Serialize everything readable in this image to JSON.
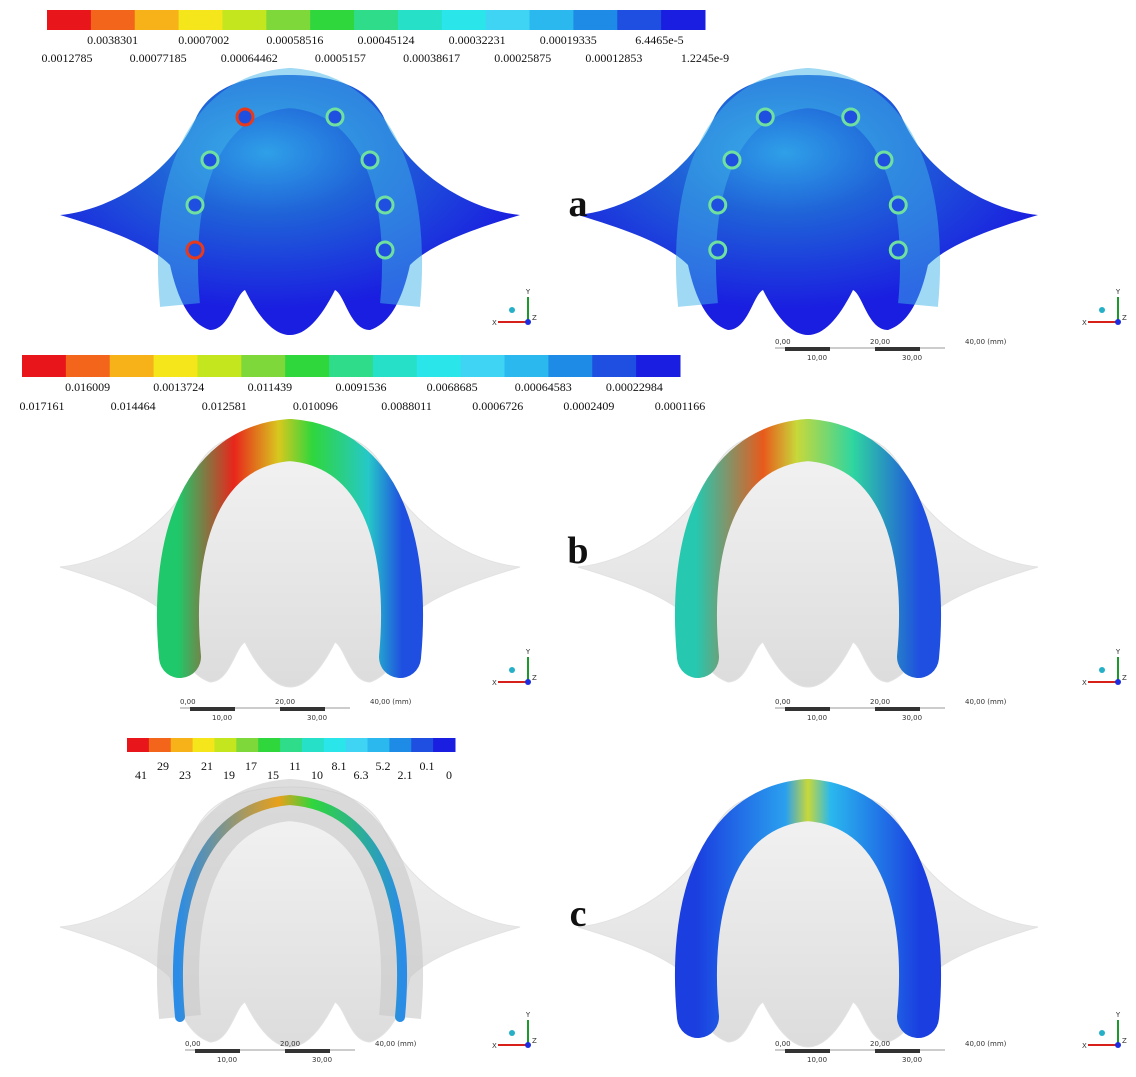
{
  "legends": [
    {
      "colors": [
        "#e8161b",
        "#f2651a",
        "#f7b21a",
        "#f4e61a",
        "#c3e61e",
        "#7ed83a",
        "#2fd63c",
        "#2fdc8a",
        "#26e0c8",
        "#2ae6ea",
        "#3fd4f4",
        "#2ab8ee",
        "#1e8ce6",
        "#1f4fe0",
        "#1a1ee0"
      ],
      "labels": [
        "0.0012785",
        "0.0038301",
        "0.00077185",
        "0.0007002",
        "0.00064462",
        "0.00058516",
        "0.0005157",
        "0.00045124",
        "0.00038617",
        "0.00032231",
        "0.00025875",
        "0.00019335",
        "0.00012853",
        "6.4465e-5",
        "1.2245e-9"
      ]
    },
    {
      "colors": [
        "#e8161b",
        "#f2651a",
        "#f7b21a",
        "#f4e61a",
        "#c3e61e",
        "#7ed83a",
        "#2fd63c",
        "#2fdc8a",
        "#26e0c8",
        "#2ae6ea",
        "#3fd4f4",
        "#2ab8ee",
        "#1e8ce6",
        "#1f4fe0",
        "#1a1ee0"
      ],
      "labels": [
        "0.017161",
        "0.016009",
        "0.014464",
        "0.0013724",
        "0.012581",
        "0.011439",
        "0.010096",
        "0.0091536",
        "0.0088011",
        "0.0068685",
        "0.0006726",
        "0.00064583",
        "0.0002409",
        "0.00022984",
        "0.0001166"
      ]
    },
    {
      "colors": [
        "#e8161b",
        "#f2651a",
        "#f7b21a",
        "#f4e61a",
        "#c3e61e",
        "#7ed83a",
        "#2fd63c",
        "#2fdc8a",
        "#26e0c8",
        "#2ae6ea",
        "#3fd4f4",
        "#2ab8ee",
        "#1e8ce6",
        "#1f4fe0",
        "#1a1ee0"
      ],
      "labels": [
        "41",
        "29",
        "23",
        "21",
        "19",
        "17",
        "15",
        "11",
        "10",
        "8.1",
        "6.3",
        "5.2",
        "2.1",
        "0.1",
        "0"
      ]
    }
  ],
  "panels": [
    {
      "letter": "a"
    },
    {
      "letter": "b"
    },
    {
      "letter": "c"
    }
  ],
  "scale_bar": {
    "top": [
      "0,00",
      "20,00",
      "40,00 (mm)"
    ],
    "bottom": [
      "10,00",
      "30,00"
    ]
  },
  "triad": {
    "x": "X",
    "y": "Y",
    "z": "Z"
  }
}
